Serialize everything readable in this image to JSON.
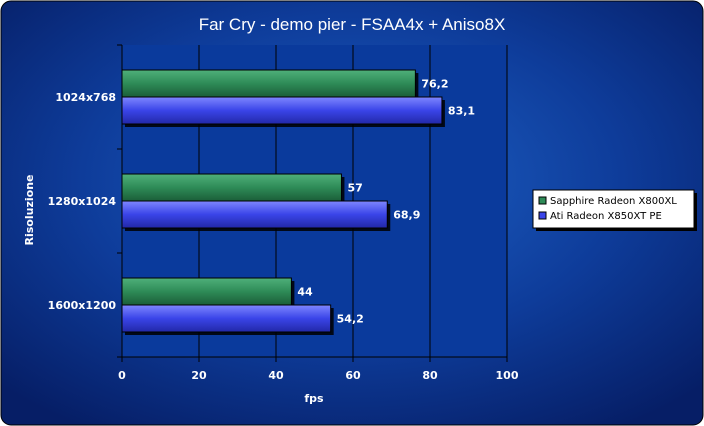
{
  "chart_data": {
    "type": "bar",
    "orientation": "horizontal",
    "title": "Far Cry - demo pier - FSAA4x + Aniso8X",
    "xlabel": "fps",
    "ylabel": "Risoluzione",
    "categories": [
      "1024x768",
      "1280x1024",
      "1600x1200"
    ],
    "series": [
      {
        "name": "Sapphire Radeon X800XL",
        "color": "#2e8b57",
        "values": [
          76.2,
          57,
          44
        ],
        "labels": [
          "76,2",
          "57",
          "44"
        ]
      },
      {
        "name": "Ati Radeon X850XT PE",
        "color": "#3a44e8",
        "values": [
          83.1,
          68.9,
          54.2
        ],
        "labels": [
          "83,1",
          "68,9",
          "54,2"
        ]
      }
    ],
    "xlim": [
      0,
      100
    ],
    "xticks": [
      0,
      20,
      40,
      60,
      80,
      100
    ],
    "grid": true,
    "legend_position": "right",
    "background": "#0b2f86",
    "plot_background": "#0a3a9c"
  }
}
